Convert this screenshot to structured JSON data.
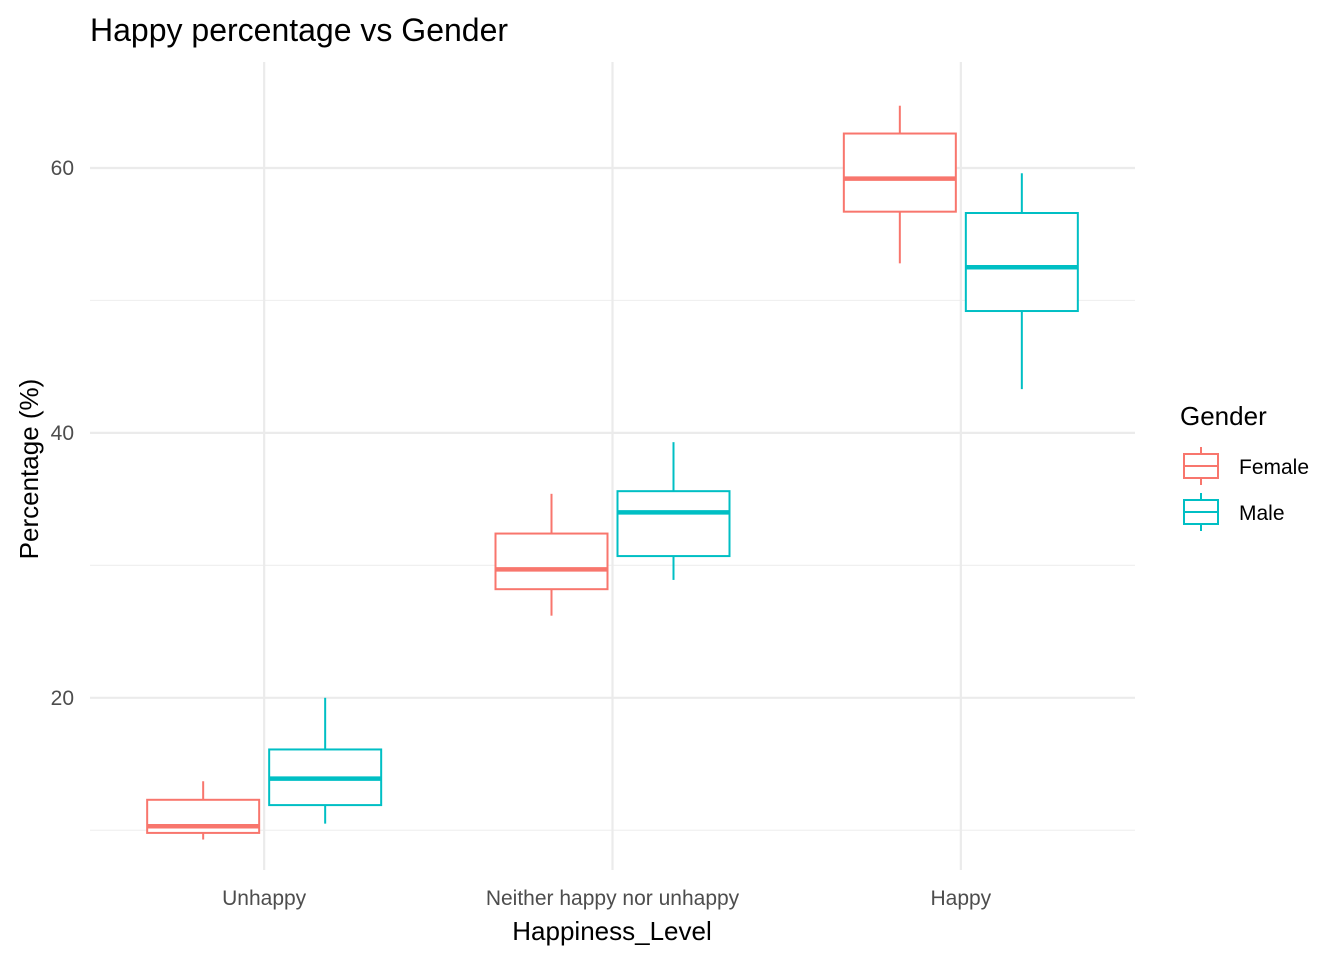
{
  "chart_data": {
    "type": "box",
    "title": "Happy percentage vs Gender",
    "xlabel": "Happiness_Level",
    "ylabel": "Percentage (%)",
    "categories": [
      "Unhappy",
      "Neither happy nor unhappy",
      "Happy"
    ],
    "ylim": [
      7,
      68
    ],
    "y_ticks": [
      20,
      40,
      60
    ],
    "y_minor_ticks": [
      10,
      30,
      50
    ],
    "grid": true,
    "legend": {
      "title": "Gender",
      "position": "right"
    },
    "series": [
      {
        "name": "Female",
        "color": "#F8766D",
        "boxes": [
          {
            "category": "Unhappy",
            "min": 9.3,
            "q1": 9.8,
            "median": 10.3,
            "q3": 12.3,
            "max": 13.7
          },
          {
            "category": "Neither happy nor unhappy",
            "min": 26.2,
            "q1": 28.2,
            "median": 29.7,
            "q3": 32.4,
            "max": 35.4
          },
          {
            "category": "Happy",
            "min": 52.8,
            "q1": 56.7,
            "median": 59.2,
            "q3": 62.6,
            "max": 64.7
          }
        ]
      },
      {
        "name": "Male",
        "color": "#00BFC4",
        "boxes": [
          {
            "category": "Unhappy",
            "min": 10.5,
            "q1": 11.9,
            "median": 13.9,
            "q3": 16.1,
            "max": 20.0
          },
          {
            "category": "Neither happy nor unhappy",
            "min": 28.9,
            "q1": 30.7,
            "median": 34.0,
            "q3": 35.6,
            "max": 39.3
          },
          {
            "category": "Happy",
            "min": 43.3,
            "q1": 49.2,
            "median": 52.5,
            "q3": 56.6,
            "max": 59.6
          }
        ]
      }
    ]
  }
}
